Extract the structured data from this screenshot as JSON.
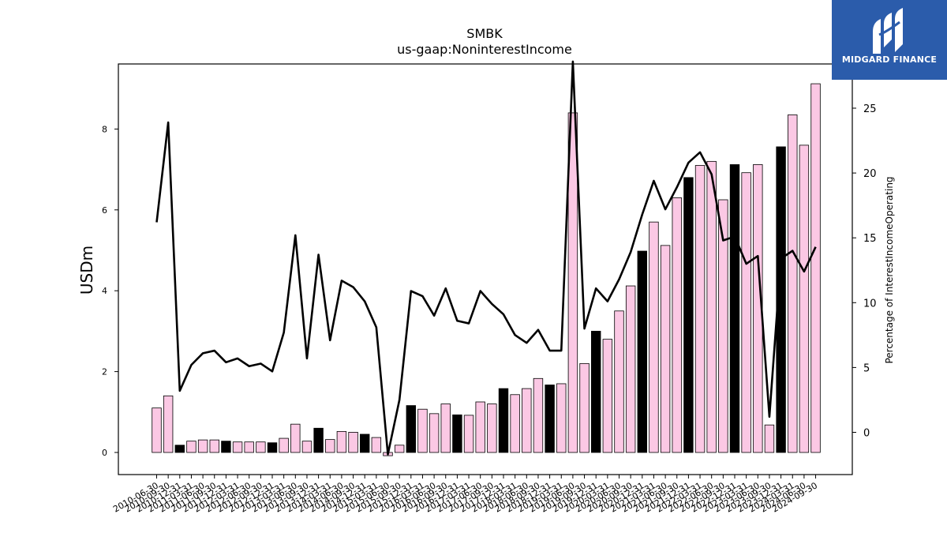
{
  "chart_data": {
    "type": "bar",
    "title": "SMBK",
    "subtitle": "us-gaap:NoninterestIncome",
    "ylabel": "USDm",
    "y2label": "Percentage of InterestIncomeOperating",
    "ylim": [
      -0.55,
      9.6
    ],
    "y2lim": [
      -3.3,
      28.6
    ],
    "yticks": [
      0,
      2,
      4,
      6,
      8
    ],
    "y2ticks": [
      0,
      5,
      10,
      15,
      20,
      25
    ],
    "categories": [
      "2010-06-30",
      "2010-09-30",
      "2010-12-31",
      "2011-03-31",
      "2011-06-30",
      "2011-09-30",
      "2011-12-31",
      "2012-03-31",
      "2012-06-30",
      "2012-09-30",
      "2012-12-31",
      "2013-03-31",
      "2013-06-30",
      "2013-09-30",
      "2013-12-31",
      "2014-03-31",
      "2014-06-30",
      "2014-09-30",
      "2014-12-31",
      "2015-03-31",
      "2015-06-30",
      "2015-09-30",
      "2015-12-31",
      "2016-03-31",
      "2016-06-30",
      "2016-09-30",
      "2016-12-31",
      "2017-03-31",
      "2017-06-30",
      "2017-09-30",
      "2017-12-31",
      "2018-03-31",
      "2018-06-30",
      "2018-09-30",
      "2018-12-31",
      "2019-03-31",
      "2019-06-30",
      "2019-09-30",
      "2019-12-31",
      "2020-03-31",
      "2020-06-30",
      "2020-09-30",
      "2020-12-31",
      "2021-03-31",
      "2021-06-30",
      "2021-09-30",
      "2021-12-31",
      "2022-03-31",
      "2022-06-30",
      "2022-09-30",
      "2022-12-31",
      "2023-03-31",
      "2023-06-30",
      "2023-09-30",
      "2023-12-31",
      "2024-03-31",
      "2024-06-30",
      "2024-09-30"
    ],
    "tick_labels": [
      "2010-06-30",
      "2010-09-30",
      "2010-12-31",
      "2011-03-31",
      "2011-06-30",
      "2011-09-30",
      "2011-12-31",
      "2012-03-31",
      "2012-06-30",
      "2012-09-30",
      "2012-12-31",
      "2013-03-31",
      "2013-06-30",
      "2013-09-30",
      "2013-12-31",
      "2014-03-31",
      "2014-06-30",
      "2014-09-30",
      "2014-12-31",
      "2015-03-31",
      "2015-06-30",
      "2015-09-30",
      "2015-12-31",
      "2016-03-31",
      "2016-06-30",
      "2016-09-30",
      "2016-12-31",
      "2017-03-31",
      "2017-06-30",
      "2017-09-30",
      "2017-12-31",
      "2018-03-31",
      "2018-06-30",
      "2018-09-30",
      "2018-12-31",
      "2019-03-31",
      "2019-06-30",
      "2019-09-30",
      "2019-12-31",
      "2020-03-31",
      "2020-06-30",
      "2020-09-30",
      "2020-12-31",
      "2021-03-31",
      "2021-06-30",
      "2021-09-30",
      "2021-12-31",
      "2022-03-31",
      "2022-06-30",
      "2022-09-30",
      "2022-12-31",
      "2023-03-31",
      "2023-06-30",
      "2023-09-30",
      "2023-12-31",
      "2024-03-31",
      "2024-06-30",
      "2024-09-30"
    ],
    "bar_values": [
      1.1,
      1.4,
      0.18,
      0.28,
      0.31,
      0.31,
      0.28,
      0.26,
      0.26,
      0.26,
      0.24,
      0.35,
      0.7,
      0.28,
      0.6,
      0.32,
      0.52,
      0.5,
      0.45,
      0.37,
      -0.08,
      0.18,
      1.16,
      1.07,
      0.96,
      1.2,
      0.93,
      0.92,
      1.25,
      1.2,
      1.58,
      1.43,
      1.58,
      1.83,
      1.67,
      1.7,
      8.4,
      2.2,
      3.0,
      2.8,
      3.5,
      4.12,
      4.98,
      5.7,
      5.12,
      6.3,
      6.8,
      7.1,
      7.2,
      6.25,
      7.12,
      6.92,
      7.12,
      0.68,
      7.56,
      8.35,
      7.6,
      9.12
    ],
    "bar_colors": [
      "#fbc8e4",
      "#fbc8e4",
      "#000000",
      "#fbc8e4",
      "#fbc8e4",
      "#fbc8e4",
      "#000000",
      "#fbc8e4",
      "#fbc8e4",
      "#fbc8e4",
      "#000000",
      "#fbc8e4",
      "#fbc8e4",
      "#fbc8e4",
      "#000000",
      "#fbc8e4",
      "#fbc8e4",
      "#fbc8e4",
      "#000000",
      "#fbc8e4",
      "#fbc8e4",
      "#fbc8e4",
      "#000000",
      "#fbc8e4",
      "#fbc8e4",
      "#fbc8e4",
      "#000000",
      "#fbc8e4",
      "#fbc8e4",
      "#fbc8e4",
      "#000000",
      "#fbc8e4",
      "#fbc8e4",
      "#fbc8e4",
      "#000000",
      "#fbc8e4",
      "#fbc8e4",
      "#fbc8e4",
      "#000000",
      "#fbc8e4",
      "#fbc8e4",
      "#fbc8e4",
      "#000000",
      "#fbc8e4",
      "#fbc8e4",
      "#fbc8e4",
      "#000000",
      "#fbc8e4",
      "#fbc8e4",
      "#fbc8e4",
      "#000000",
      "#fbc8e4",
      "#fbc8e4",
      "#fbc8e4",
      "#000000",
      "#fbc8e4",
      "#fbc8e4",
      "#fbc8e4"
    ],
    "line_values": [
      16.2,
      23.9,
      3.2,
      5.2,
      6.1,
      6.3,
      5.4,
      5.7,
      5.1,
      5.3,
      4.7,
      7.7,
      15.2,
      5.7,
      13.7,
      7.1,
      11.7,
      11.2,
      10.1,
      8.1,
      -1.7,
      2.5,
      10.9,
      10.5,
      9.0,
      11.1,
      8.6,
      8.4,
      10.9,
      9.9,
      9.1,
      7.5,
      6.9,
      7.9,
      6.3,
      6.3,
      28.6,
      8.0,
      11.1,
      10.1,
      11.8,
      13.9,
      16.8,
      19.4,
      17.2,
      18.9,
      20.8,
      21.6,
      19.9,
      14.8,
      15.1,
      13.0,
      13.6,
      1.2,
      13.4,
      14.0,
      12.4,
      14.3
    ],
    "colors": {
      "bar_pink": "#fbc8e4",
      "bar_black": "#000000",
      "line": "#000000",
      "axis": "#000000"
    },
    "grid": false
  },
  "logo": {
    "text": "MIDGARD FINANCE",
    "icon": "midgard-logo-icon",
    "background": "#2b5cab"
  }
}
